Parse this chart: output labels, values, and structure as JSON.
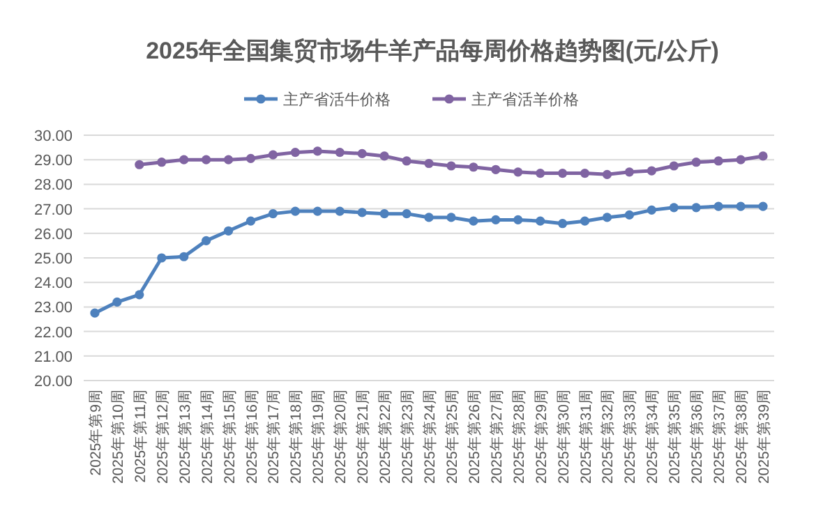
{
  "chart_data": {
    "type": "line",
    "title": "2025年全国集贸市场牛羊产品每周价格趋势图(元/公斤)",
    "categories": [
      "2025年第9周",
      "2025年第10周",
      "2025年第11周",
      "2025年第12周",
      "2025年第13周",
      "2025年第14周",
      "2025年第15周",
      "2025年第16周",
      "2025年第17周",
      "2025年第18周",
      "2025年第19周",
      "2025年第20周",
      "2025年第21周",
      "2025年第22周",
      "2025年第23周",
      "2025年第24周",
      "2025年第25周",
      "2025年第26周",
      "2025年第27周",
      "2025年第28周",
      "2025年第29周",
      "2025年第30周",
      "2025年第31周",
      "2025年第32周",
      "2025年第33周",
      "2025年第34周",
      "2025年第35周",
      "2025年第36周",
      "2025年第37周",
      "2025年第38周",
      "2025年第39周"
    ],
    "series": [
      {
        "name": "主产省活牛价格",
        "color": "#4e81bd",
        "values": [
          22.75,
          23.2,
          23.5,
          25.0,
          25.05,
          25.7,
          26.1,
          26.5,
          26.8,
          26.9,
          26.9,
          26.9,
          26.85,
          26.8,
          26.8,
          26.65,
          26.65,
          26.5,
          26.55,
          26.55,
          26.5,
          26.4,
          26.5,
          26.65,
          26.75,
          26.95,
          27.05,
          27.05,
          27.1,
          27.1,
          27.1
        ]
      },
      {
        "name": "主产省活羊价格",
        "color": "#8064a2",
        "values": [
          null,
          null,
          28.8,
          28.9,
          29.0,
          29.0,
          29.0,
          29.05,
          29.2,
          29.3,
          29.35,
          29.3,
          29.25,
          29.15,
          28.95,
          28.85,
          28.75,
          28.7,
          28.6,
          28.5,
          28.45,
          28.45,
          28.45,
          28.4,
          28.5,
          28.55,
          28.75,
          28.9,
          28.95,
          29.0,
          29.15
        ]
      }
    ],
    "ylim": [
      20,
      30
    ],
    "yticks": [
      {
        "value": 20,
        "label": "20.00"
      },
      {
        "value": 21,
        "label": "21.00"
      },
      {
        "value": 22,
        "label": "22.00"
      },
      {
        "value": 23,
        "label": "23.00"
      },
      {
        "value": 24,
        "label": "24.00"
      },
      {
        "value": 25,
        "label": "25.00"
      },
      {
        "value": 26,
        "label": "26.00"
      },
      {
        "value": 27,
        "label": "27.00"
      },
      {
        "value": 28,
        "label": "28.00"
      },
      {
        "value": 29,
        "label": "29.00"
      },
      {
        "value": 30,
        "label": "30.00"
      }
    ],
    "grid": "y",
    "legend": "top",
    "marker": "circle",
    "line_style": "solid"
  }
}
